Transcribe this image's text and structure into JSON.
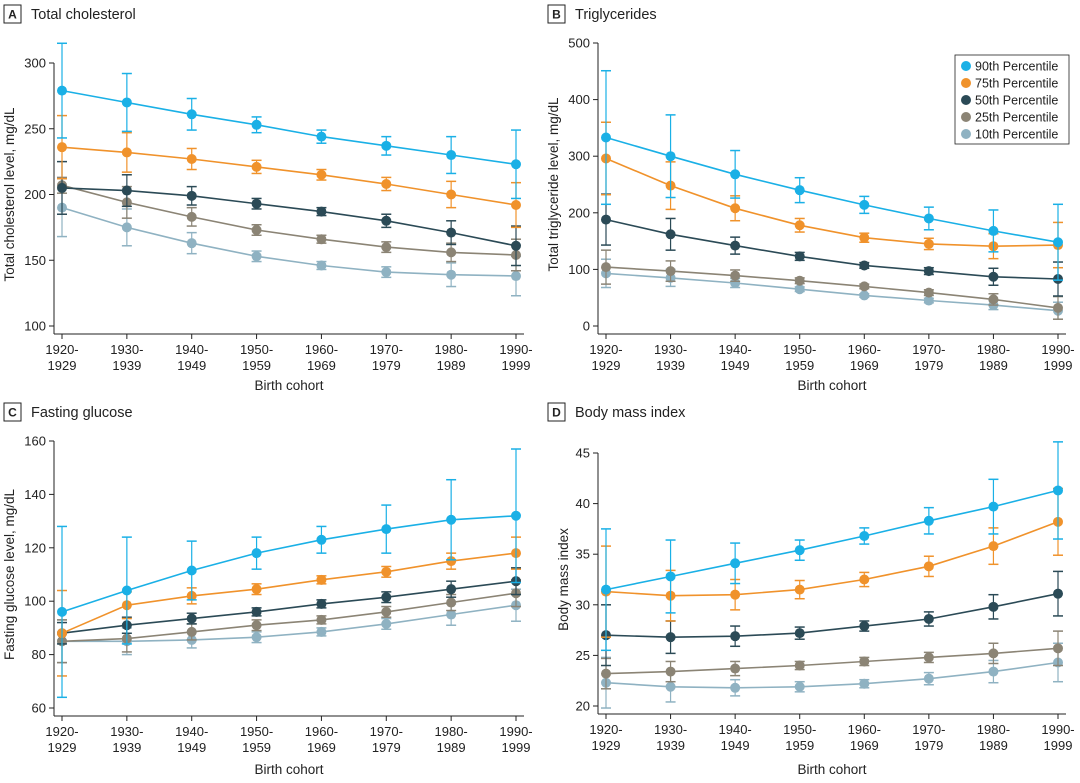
{
  "colors": {
    "p90": "#1ab0e6",
    "p75": "#f0922b",
    "p50": "#2b4a56",
    "p25": "#8b8475",
    "p10": "#8fb2c2",
    "axis": "#222222"
  },
  "legend": {
    "items": [
      {
        "label": "90th Percentile",
        "color_key": "p90"
      },
      {
        "label": "75th Percentile",
        "color_key": "p75"
      },
      {
        "label": "50th Percentile",
        "color_key": "p50"
      },
      {
        "label": "25th Percentile",
        "color_key": "p25"
      },
      {
        "label": "10th Percentile",
        "color_key": "p10"
      }
    ]
  },
  "chart_data": [
    {
      "type": "line",
      "letter": "A",
      "title": "Total cholesterol",
      "xlabel": "Birth cohort",
      "ylabel": "Total cholesterol level, mg/dL",
      "categories": [
        [
          "1920-",
          "1929"
        ],
        [
          "1930-",
          "1939"
        ],
        [
          "1940-",
          "1949"
        ],
        [
          "1950-",
          "1959"
        ],
        [
          "1960-",
          "1969"
        ],
        [
          "1970-",
          "1979"
        ],
        [
          "1980-",
          "1989"
        ],
        [
          "1990-",
          "1999"
        ]
      ],
      "ylim": [
        100,
        300
      ],
      "yticks": [
        100,
        150,
        200,
        250,
        300
      ],
      "series": [
        {
          "name": "90th Percentile",
          "color_key": "p90",
          "values": [
            279,
            270,
            261,
            253,
            244,
            237,
            230,
            223
          ],
          "err": [
            36,
            22,
            12,
            6,
            5,
            7,
            14,
            26
          ]
        },
        {
          "name": "75th Percentile",
          "color_key": "p75",
          "values": [
            236,
            232,
            227,
            221,
            215,
            208,
            200,
            192
          ],
          "err": [
            24,
            15,
            8,
            5,
            4,
            5,
            10,
            17
          ]
        },
        {
          "name": "50th Percentile",
          "color_key": "p50",
          "values": [
            205,
            203,
            199,
            193,
            187,
            180,
            171,
            161
          ],
          "err": [
            20,
            12,
            7,
            4,
            3,
            5,
            9,
            15
          ]
        },
        {
          "name": "25th Percentile",
          "color_key": "p25",
          "values": [
            207,
            194,
            183,
            173,
            166,
            160,
            156,
            154
          ],
          "err": [
            6,
            12,
            7,
            4,
            3,
            4,
            7,
            12
          ]
        },
        {
          "name": "10th Percentile",
          "color_key": "p10",
          "values": [
            190,
            175,
            163,
            153,
            146,
            141,
            139,
            138
          ],
          "err": [
            22,
            14,
            8,
            4,
            3,
            4,
            9,
            15
          ]
        }
      ]
    },
    {
      "type": "line",
      "letter": "B",
      "title": "Triglycerides",
      "xlabel": "Birth cohort",
      "ylabel": "Total triglyceride level, mg/dL",
      "categories": [
        [
          "1920-",
          "1929"
        ],
        [
          "1930-",
          "1939"
        ],
        [
          "1940-",
          "1949"
        ],
        [
          "1950-",
          "1959"
        ],
        [
          "1960-",
          "1969"
        ],
        [
          "1970-",
          "1979"
        ],
        [
          "1980-",
          "1989"
        ],
        [
          "1990-",
          "1999"
        ]
      ],
      "ylim": [
        0,
        500
      ],
      "yticks": [
        0,
        100,
        200,
        300,
        400,
        500
      ],
      "series": [
        {
          "name": "90th Percentile",
          "color_key": "p90",
          "values": [
            333,
            300,
            268,
            240,
            214,
            190,
            168,
            148
          ],
          "err": [
            118,
            73,
            42,
            22,
            15,
            20,
            37,
            67
          ]
        },
        {
          "name": "75th Percentile",
          "color_key": "p75",
          "values": [
            296,
            248,
            208,
            178,
            156,
            145,
            141,
            143
          ],
          "err": [
            64,
            42,
            22,
            12,
            8,
            10,
            22,
            40
          ]
        },
        {
          "name": "50th Percentile",
          "color_key": "p50",
          "values": [
            188,
            162,
            142,
            123,
            107,
            97,
            87,
            83
          ],
          "err": [
            45,
            28,
            15,
            7,
            5,
            6,
            15,
            30
          ]
        },
        {
          "name": "25th Percentile",
          "color_key": "p25",
          "values": [
            104,
            97,
            89,
            80,
            70,
            59,
            47,
            32
          ],
          "err": [
            30,
            18,
            10,
            5,
            4,
            5,
            10,
            20
          ]
        },
        {
          "name": "10th Percentile",
          "color_key": "p10",
          "values": [
            93,
            85,
            76,
            65,
            54,
            45,
            37,
            27
          ],
          "err": [
            25,
            15,
            8,
            4,
            3,
            4,
            8,
            15
          ]
        }
      ]
    },
    {
      "type": "line",
      "letter": "C",
      "title": "Fasting glucose",
      "xlabel": "Birth cohort",
      "ylabel": "Fasting glucose level, mg/dL",
      "categories": [
        [
          "1920-",
          "1929"
        ],
        [
          "1930-",
          "1939"
        ],
        [
          "1940-",
          "1949"
        ],
        [
          "1950-",
          "1959"
        ],
        [
          "1960-",
          "1969"
        ],
        [
          "1970-",
          "1979"
        ],
        [
          "1980-",
          "1989"
        ],
        [
          "1990-",
          "1999"
        ]
      ],
      "ylim": [
        60,
        160
      ],
      "yticks": [
        60,
        80,
        100,
        120,
        140,
        160
      ],
      "series": [
        {
          "name": "90th Percentile",
          "color_key": "p90",
          "values": [
            96,
            104,
            111.5,
            118,
            123,
            127,
            130.5,
            132
          ],
          "err": [
            32,
            20,
            11,
            6,
            5,
            9,
            15,
            25
          ]
        },
        {
          "name": "75th Percentile",
          "color_key": "p75",
          "values": [
            88,
            98.5,
            102,
            104.5,
            108,
            111,
            115,
            118
          ],
          "err": [
            16,
            5,
            3,
            2,
            1.5,
            2,
            3,
            6
          ]
        },
        {
          "name": "50th Percentile",
          "color_key": "p50",
          "values": [
            88,
            91,
            93.5,
            96,
            99,
            101.5,
            104.5,
            107.5
          ],
          "err": [
            4,
            3,
            2,
            1.5,
            1.5,
            2,
            3,
            5
          ]
        },
        {
          "name": "25th Percentile",
          "color_key": "p25",
          "values": [
            85,
            86,
            88.5,
            91,
            93,
            96,
            99.5,
            103
          ],
          "err": [
            8,
            5,
            3,
            2,
            1.5,
            2,
            3,
            5
          ]
        },
        {
          "name": "10th Percentile",
          "color_key": "p10",
          "values": [
            85,
            85,
            85.5,
            86.5,
            88.5,
            91.5,
            95,
            98.5
          ],
          "err": [
            8,
            5,
            3,
            2,
            1.5,
            2,
            4,
            6
          ]
        }
      ]
    },
    {
      "type": "line",
      "letter": "D",
      "title": "Body mass index",
      "xlabel": "Birth cohort",
      "ylabel": "Body mass index",
      "categories": [
        [
          "1920-",
          "1929"
        ],
        [
          "1930-",
          "1939"
        ],
        [
          "1940-",
          "1949"
        ],
        [
          "1950-",
          "1959"
        ],
        [
          "1960-",
          "1969"
        ],
        [
          "1970-",
          "1979"
        ],
        [
          "1980-",
          "1989"
        ],
        [
          "1990-",
          "1999"
        ]
      ],
      "ylim": [
        20,
        45
      ],
      "yticks": [
        20,
        25,
        30,
        35,
        40,
        45
      ],
      "series": [
        {
          "name": "90th Percentile",
          "color_key": "p90",
          "values": [
            31.5,
            32.8,
            34.1,
            35.4,
            36.8,
            38.3,
            39.7,
            41.3
          ],
          "err": [
            6,
            3.6,
            2,
            1,
            0.8,
            1.3,
            2.7,
            4.8
          ]
        },
        {
          "name": "75th Percentile",
          "color_key": "p75",
          "values": [
            31.3,
            30.9,
            31.0,
            31.5,
            32.5,
            33.8,
            35.8,
            38.2
          ],
          "err": [
            4.5,
            2.5,
            1.5,
            0.9,
            0.7,
            1,
            1.8,
            3.3
          ]
        },
        {
          "name": "50th Percentile",
          "color_key": "p50",
          "values": [
            27.0,
            26.8,
            26.9,
            27.2,
            27.9,
            28.6,
            29.8,
            31.1
          ],
          "err": [
            3,
            1.6,
            1,
            0.6,
            0.5,
            0.7,
            1.2,
            2.2
          ]
        },
        {
          "name": "25th Percentile",
          "color_key": "p25",
          "values": [
            23.2,
            23.4,
            23.7,
            24.0,
            24.4,
            24.8,
            25.2,
            25.7
          ],
          "err": [
            1.5,
            1,
            0.7,
            0.4,
            0.4,
            0.5,
            1,
            1.7
          ]
        },
        {
          "name": "10th Percentile",
          "color_key": "p10",
          "values": [
            22.3,
            21.9,
            21.8,
            21.9,
            22.2,
            22.7,
            23.4,
            24.3
          ],
          "err": [
            2.5,
            1.5,
            0.8,
            0.5,
            0.4,
            0.6,
            1.1,
            1.9
          ]
        }
      ]
    }
  ]
}
